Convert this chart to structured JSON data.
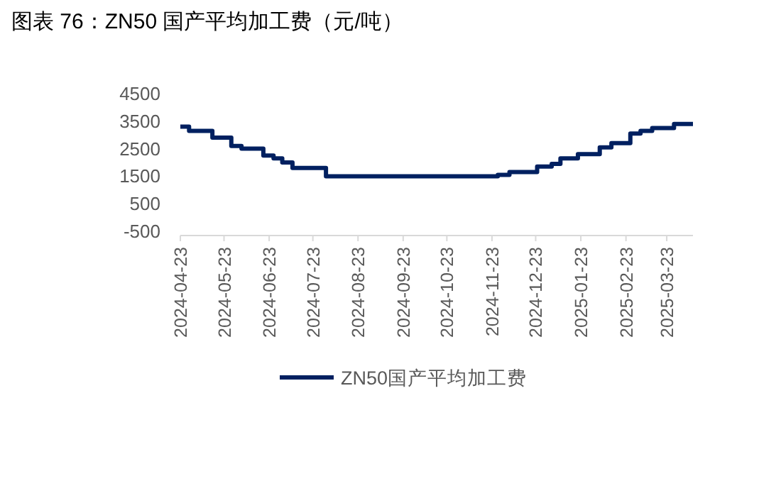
{
  "chart_data": {
    "type": "step",
    "title": "图表 76：ZN50 国产平均加工费（元/吨）",
    "x": [
      "2024-04-23",
      "2024-04-29",
      "2024-05-15",
      "2024-05-28",
      "2024-06-04",
      "2024-06-19",
      "2024-06-26",
      "2024-07-02",
      "2024-07-09",
      "2024-08-01",
      "2024-11-27",
      "2024-12-05",
      "2024-12-24",
      "2025-01-03",
      "2025-01-09",
      "2025-01-21",
      "2025-02-05",
      "2025-02-13",
      "2025-02-26",
      "2025-03-05",
      "2025-03-13",
      "2025-03-28",
      "2025-04-10"
    ],
    "series": [
      {
        "name": "ZN50国产平均加工费",
        "color": "#002060",
        "values": [
          3300,
          3150,
          2900,
          2600,
          2500,
          2250,
          2150,
          2000,
          1800,
          1500,
          1550,
          1650,
          1850,
          1950,
          2150,
          2300,
          2550,
          2700,
          3050,
          3150,
          3250,
          3400,
          3400
        ]
      }
    ],
    "xlim": [
      "2024-04-23",
      "2025-04-10"
    ],
    "xticks": [
      "2024-04-23",
      "2024-05-23",
      "2024-06-23",
      "2024-07-23",
      "2024-08-23",
      "2024-09-23",
      "2024-10-23",
      "2024-11-23",
      "2024-12-23",
      "2025-01-23",
      "2025-02-23",
      "2025-03-23"
    ],
    "ylim": [
      -500,
      4500
    ],
    "yticks": [
      -500,
      500,
      1500,
      2500,
      3500,
      4500
    ],
    "grid": false,
    "legend": "bottom",
    "line_style": "solid",
    "marker": "none"
  }
}
